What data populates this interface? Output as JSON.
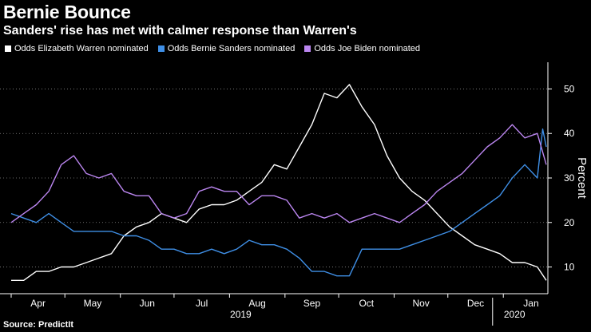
{
  "title": "Bernie Bounce",
  "subtitle": "Sanders' rise has met with calmer response than Warren's",
  "source": "Source: PredictIt",
  "chart_data": {
    "type": "line",
    "title": "Bernie Bounce",
    "subtitle": "Sanders' rise has met with calmer response than Warren's",
    "ylabel": "Percent",
    "xlabel": "",
    "ylim": [
      4,
      56
    ],
    "xlim": [
      "2019-04-01",
      "2020-01-25"
    ],
    "y_ticks": [
      10,
      20,
      30,
      40,
      50
    ],
    "x_ticks": [
      {
        "label": "Apr",
        "date": "2019-04-01"
      },
      {
        "label": "May",
        "date": "2019-05-01"
      },
      {
        "label": "Jun",
        "date": "2019-06-01"
      },
      {
        "label": "Jul",
        "date": "2019-07-01"
      },
      {
        "label": "Aug",
        "date": "2019-08-01"
      },
      {
        "label": "Sep",
        "date": "2019-09-01"
      },
      {
        "label": "Oct",
        "date": "2019-10-01"
      },
      {
        "label": "Nov",
        "date": "2019-11-01"
      },
      {
        "label": "Dec",
        "date": "2019-12-01"
      },
      {
        "label": "Jan",
        "date": "2020-01-01"
      }
    ],
    "year_labels": [
      {
        "label": "2019",
        "date": "2019-08-01"
      },
      {
        "label": "2020",
        "date": "2020-01-01"
      }
    ],
    "year_separator_date": "2019-12-26",
    "grid": true,
    "grid_style": "dotted",
    "y_axis_side": "right",
    "legend_position": "top-left",
    "series": [
      {
        "name": "Odds Elizabeth Warren nominated",
        "color": "#ffffff",
        "points": [
          [
            "2019-04-01",
            7
          ],
          [
            "2019-04-08",
            7
          ],
          [
            "2019-04-15",
            9
          ],
          [
            "2019-04-22",
            9
          ],
          [
            "2019-04-29",
            10
          ],
          [
            "2019-05-06",
            10
          ],
          [
            "2019-05-13",
            11
          ],
          [
            "2019-05-20",
            12
          ],
          [
            "2019-05-27",
            13
          ],
          [
            "2019-06-03",
            17
          ],
          [
            "2019-06-10",
            19
          ],
          [
            "2019-06-17",
            20
          ],
          [
            "2019-06-24",
            22
          ],
          [
            "2019-07-01",
            21
          ],
          [
            "2019-07-08",
            20
          ],
          [
            "2019-07-15",
            23
          ],
          [
            "2019-07-22",
            24
          ],
          [
            "2019-07-29",
            24
          ],
          [
            "2019-08-05",
            25
          ],
          [
            "2019-08-12",
            27
          ],
          [
            "2019-08-19",
            29
          ],
          [
            "2019-08-26",
            33
          ],
          [
            "2019-09-02",
            32
          ],
          [
            "2019-09-09",
            37
          ],
          [
            "2019-09-16",
            42
          ],
          [
            "2019-09-23",
            49
          ],
          [
            "2019-09-30",
            48
          ],
          [
            "2019-10-07",
            51
          ],
          [
            "2019-10-14",
            46
          ],
          [
            "2019-10-21",
            42
          ],
          [
            "2019-10-28",
            35
          ],
          [
            "2019-11-04",
            30
          ],
          [
            "2019-11-11",
            27
          ],
          [
            "2019-11-18",
            25
          ],
          [
            "2019-11-25",
            22
          ],
          [
            "2019-12-02",
            19
          ],
          [
            "2019-12-09",
            17
          ],
          [
            "2019-12-16",
            15
          ],
          [
            "2019-12-23",
            14
          ],
          [
            "2019-12-30",
            13
          ],
          [
            "2020-01-06",
            11
          ],
          [
            "2020-01-13",
            11
          ],
          [
            "2020-01-20",
            10
          ],
          [
            "2020-01-25",
            7
          ]
        ]
      },
      {
        "name": "Odds Bernie Sanders nominated",
        "color": "#3f8fe6",
        "points": [
          [
            "2019-04-01",
            22
          ],
          [
            "2019-04-08",
            21
          ],
          [
            "2019-04-15",
            20
          ],
          [
            "2019-04-22",
            22
          ],
          [
            "2019-04-29",
            20
          ],
          [
            "2019-05-06",
            18
          ],
          [
            "2019-05-13",
            18
          ],
          [
            "2019-05-20",
            18
          ],
          [
            "2019-05-27",
            18
          ],
          [
            "2019-06-03",
            17
          ],
          [
            "2019-06-10",
            17
          ],
          [
            "2019-06-17",
            16
          ],
          [
            "2019-06-24",
            14
          ],
          [
            "2019-07-01",
            14
          ],
          [
            "2019-07-08",
            13
          ],
          [
            "2019-07-15",
            13
          ],
          [
            "2019-07-22",
            14
          ],
          [
            "2019-07-29",
            13
          ],
          [
            "2019-08-05",
            14
          ],
          [
            "2019-08-12",
            16
          ],
          [
            "2019-08-19",
            15
          ],
          [
            "2019-08-26",
            15
          ],
          [
            "2019-09-02",
            14
          ],
          [
            "2019-09-09",
            12
          ],
          [
            "2019-09-16",
            9
          ],
          [
            "2019-09-23",
            9
          ],
          [
            "2019-09-30",
            8
          ],
          [
            "2019-10-07",
            8
          ],
          [
            "2019-10-14",
            14
          ],
          [
            "2019-10-21",
            14
          ],
          [
            "2019-10-28",
            14
          ],
          [
            "2019-11-04",
            14
          ],
          [
            "2019-11-11",
            15
          ],
          [
            "2019-11-18",
            16
          ],
          [
            "2019-11-25",
            17
          ],
          [
            "2019-12-02",
            18
          ],
          [
            "2019-12-09",
            20
          ],
          [
            "2019-12-16",
            22
          ],
          [
            "2019-12-23",
            24
          ],
          [
            "2019-12-30",
            26
          ],
          [
            "2020-01-06",
            30
          ],
          [
            "2020-01-13",
            33
          ],
          [
            "2020-01-20",
            30
          ],
          [
            "2020-01-23",
            41
          ],
          [
            "2020-01-25",
            37
          ]
        ]
      },
      {
        "name": "Odds Joe Biden nominated",
        "color": "#bb86f0",
        "points": [
          [
            "2019-04-01",
            20
          ],
          [
            "2019-04-08",
            22
          ],
          [
            "2019-04-15",
            24
          ],
          [
            "2019-04-22",
            27
          ],
          [
            "2019-04-29",
            33
          ],
          [
            "2019-05-06",
            35
          ],
          [
            "2019-05-13",
            31
          ],
          [
            "2019-05-20",
            30
          ],
          [
            "2019-05-27",
            31
          ],
          [
            "2019-06-03",
            27
          ],
          [
            "2019-06-10",
            26
          ],
          [
            "2019-06-17",
            26
          ],
          [
            "2019-06-24",
            22
          ],
          [
            "2019-07-01",
            21
          ],
          [
            "2019-07-08",
            22
          ],
          [
            "2019-07-15",
            27
          ],
          [
            "2019-07-22",
            28
          ],
          [
            "2019-07-29",
            27
          ],
          [
            "2019-08-05",
            27
          ],
          [
            "2019-08-12",
            24
          ],
          [
            "2019-08-19",
            26
          ],
          [
            "2019-08-26",
            26
          ],
          [
            "2019-09-02",
            25
          ],
          [
            "2019-09-09",
            21
          ],
          [
            "2019-09-16",
            22
          ],
          [
            "2019-09-23",
            21
          ],
          [
            "2019-09-30",
            22
          ],
          [
            "2019-10-07",
            20
          ],
          [
            "2019-10-14",
            21
          ],
          [
            "2019-10-21",
            22
          ],
          [
            "2019-10-28",
            21
          ],
          [
            "2019-11-04",
            20
          ],
          [
            "2019-11-11",
            22
          ],
          [
            "2019-11-18",
            24
          ],
          [
            "2019-11-25",
            27
          ],
          [
            "2019-12-02",
            29
          ],
          [
            "2019-12-09",
            31
          ],
          [
            "2019-12-16",
            34
          ],
          [
            "2019-12-23",
            37
          ],
          [
            "2019-12-30",
            39
          ],
          [
            "2020-01-06",
            42
          ],
          [
            "2020-01-13",
            39
          ],
          [
            "2020-01-20",
            40
          ],
          [
            "2020-01-25",
            33
          ]
        ]
      }
    ]
  }
}
